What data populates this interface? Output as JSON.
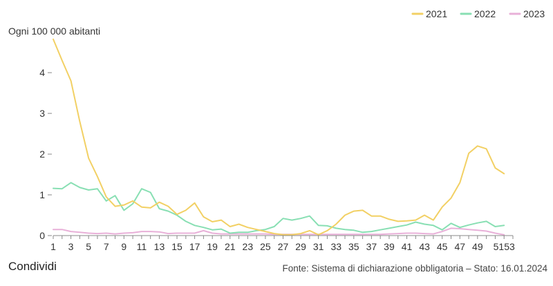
{
  "chart_data": {
    "type": "line",
    "ylabel": "Ogni 100 000 abitanti",
    "ylim": [
      0,
      4.8
    ],
    "yticks": [
      0,
      1,
      2,
      3,
      4
    ],
    "xlim": [
      1,
      53
    ],
    "xtick_labels": [
      "1",
      "3",
      "5",
      "7",
      "9",
      "11",
      "13",
      "15",
      "17",
      "19",
      "21",
      "23",
      "25",
      "27",
      "29",
      "31",
      "33",
      "35",
      "37",
      "39",
      "41",
      "43",
      "45",
      "47",
      "49",
      "5153"
    ],
    "legend_position": "top-right",
    "grid": false,
    "series": [
      {
        "name": "2021",
        "color": "#f2d064",
        "x": [
          1,
          2,
          3,
          4,
          5,
          6,
          7,
          8,
          9,
          10,
          11,
          12,
          13,
          14,
          15,
          16,
          17,
          18,
          19,
          20,
          21,
          22,
          23,
          24,
          25,
          26,
          27,
          28,
          29,
          30,
          31,
          32,
          33,
          34,
          35,
          36,
          37,
          38,
          39,
          40,
          41,
          42,
          43,
          44,
          45,
          46,
          47,
          48,
          49,
          50,
          51,
          52
        ],
        "values": [
          4.82,
          4.3,
          3.8,
          2.8,
          1.9,
          1.45,
          0.95,
          0.72,
          0.75,
          0.85,
          0.7,
          0.68,
          0.82,
          0.72,
          0.52,
          0.62,
          0.8,
          0.46,
          0.34,
          0.38,
          0.22,
          0.28,
          0.2,
          0.15,
          0.1,
          0.05,
          0.02,
          0.02,
          0.05,
          0.12,
          0.02,
          0.12,
          0.28,
          0.5,
          0.6,
          0.62,
          0.48,
          0.48,
          0.4,
          0.35,
          0.36,
          0.38,
          0.5,
          0.38,
          0.7,
          0.92,
          1.3,
          2.02,
          2.2,
          2.13,
          1.66,
          1.52
        ]
      },
      {
        "name": "2022",
        "color": "#88dfb3",
        "x": [
          1,
          2,
          3,
          4,
          5,
          6,
          7,
          8,
          9,
          10,
          11,
          12,
          13,
          14,
          15,
          16,
          17,
          18,
          19,
          20,
          21,
          22,
          23,
          24,
          25,
          26,
          27,
          28,
          29,
          30,
          31,
          32,
          33,
          34,
          35,
          36,
          37,
          38,
          39,
          40,
          41,
          42,
          43,
          44,
          45,
          46,
          47,
          48,
          49,
          50,
          51,
          52
        ],
        "values": [
          1.16,
          1.15,
          1.3,
          1.18,
          1.12,
          1.15,
          0.85,
          0.98,
          0.62,
          0.78,
          1.15,
          1.06,
          0.66,
          0.6,
          0.5,
          0.35,
          0.25,
          0.2,
          0.14,
          0.16,
          0.06,
          0.08,
          0.08,
          0.12,
          0.15,
          0.22,
          0.42,
          0.38,
          0.42,
          0.48,
          0.25,
          0.24,
          0.18,
          0.15,
          0.13,
          0.08,
          0.1,
          0.14,
          0.18,
          0.22,
          0.26,
          0.33,
          0.28,
          0.25,
          0.14,
          0.3,
          0.2,
          0.26,
          0.31,
          0.35,
          0.22,
          0.25
        ]
      },
      {
        "name": "2023",
        "color": "#e8b0d8",
        "x": [
          1,
          2,
          3,
          4,
          5,
          6,
          7,
          8,
          9,
          10,
          11,
          12,
          13,
          14,
          15,
          16,
          17,
          18,
          19,
          20,
          21,
          22,
          23,
          24,
          25,
          26,
          27,
          28,
          29,
          30,
          31,
          32,
          33,
          34,
          35,
          36,
          37,
          38,
          39,
          40,
          41,
          42,
          43,
          44,
          45,
          46,
          47,
          48,
          49,
          50,
          51,
          52
        ],
        "values": [
          0.15,
          0.15,
          0.1,
          0.08,
          0.06,
          0.05,
          0.06,
          0.04,
          0.06,
          0.07,
          0.1,
          0.1,
          0.09,
          0.05,
          0.06,
          0.06,
          0.06,
          0.12,
          0.06,
          0.04,
          0.04,
          0.04,
          0.04,
          0.04,
          0.04,
          0.03,
          0.03,
          0.03,
          0.03,
          0.03,
          0.03,
          0.03,
          0.03,
          0.03,
          0.03,
          0.03,
          0.03,
          0.03,
          0.04,
          0.05,
          0.06,
          0.06,
          0.05,
          0.04,
          0.1,
          0.18,
          0.17,
          0.15,
          0.13,
          0.11,
          0.06,
          0.02
        ]
      }
    ]
  },
  "footer": {
    "share_label": "Condividi",
    "source_text": "Fonte: Sistema di dichiarazione obbligatoria – Stato: 16.01.2024"
  }
}
